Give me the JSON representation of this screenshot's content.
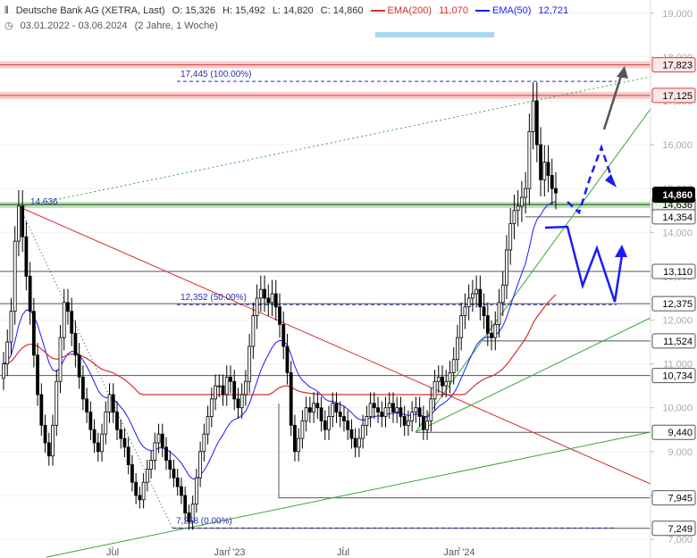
{
  "header": {
    "instrument": "Deutsche Bank AG (XETRA, Last)",
    "open": "O: 15,326",
    "high": "H: 15,492",
    "low": "L: 14,820",
    "close": "C: 14,860",
    "ema200_label": "EMA(200)",
    "ema200_value": "11,070",
    "ema50_label": "EMA(50)",
    "ema50_value": "12,721",
    "date_range": "03.01.2022 - 03.06.2024",
    "period": "(2 Jahre, 1 Woche)"
  },
  "colors": {
    "candle": "#000000",
    "ema200": "#d32f2f",
    "ema50": "#1a1aff",
    "trendline_green": "#3aa63a",
    "trendline_red": "#d32f2f",
    "resistance_zone": "#f4b6b6",
    "support_zone": "#a8e0a0",
    "price_tag": "#000000",
    "projection": "#1a1aff",
    "arrow_gray": "#555555"
  },
  "chart_data": {
    "type": "candlestick",
    "x_tick_labels": [
      "Jul",
      "Jan '23",
      "Jul",
      "Jan '24"
    ],
    "x_ticks": [
      126,
      257,
      384,
      514
    ],
    "y_ticks": [
      7000,
      8000,
      9000,
      10000,
      11000,
      12000,
      13000,
      14000,
      15000,
      16000,
      17000,
      18000,
      19000
    ],
    "y_tick_labels": [
      "7,000",
      "8,000",
      "9,000",
      "10,000",
      "11,000",
      "12,000",
      "13,000",
      "14,000",
      "15,000",
      "16,000",
      "17,000",
      "18,000",
      "19,000"
    ],
    "ylim": [
      6900,
      19300
    ],
    "last_price": 14.86,
    "last_price_label": "14,860",
    "level_labels": [
      {
        "value": 17.823,
        "label": "17,823",
        "style": "zone-red"
      },
      {
        "value": 17.125,
        "label": "17,125",
        "style": "zone-red"
      },
      {
        "value": 14.636,
        "label": "14,636",
        "style": "zone-green"
      },
      {
        "value": 14.354,
        "label": "14,354",
        "style": "line"
      },
      {
        "value": 13.11,
        "label": "13,110",
        "style": "line"
      },
      {
        "value": 12.375,
        "label": "12,375",
        "style": "line"
      },
      {
        "value": 11.524,
        "label": "11,524",
        "style": "line"
      },
      {
        "value": 10.734,
        "label": "10,734",
        "style": "line"
      },
      {
        "value": 9.44,
        "label": "9,440",
        "style": "line"
      },
      {
        "value": 7.945,
        "label": "7,945",
        "style": "line"
      },
      {
        "value": 7.249,
        "label": "7,249",
        "style": "line"
      }
    ],
    "fib_labels": [
      {
        "value": 17.445,
        "label": "17,445 (100.00%)"
      },
      {
        "value": 12.352,
        "label": "12,352 (50.00%)"
      },
      {
        "value": 7.258,
        "label": "7,258 (0.00%)"
      }
    ],
    "peak_label": {
      "value": 14.636,
      "label": "14,636"
    },
    "closes": [
      11.0,
      11.5,
      12.2,
      13.8,
      14.6,
      13.9,
      13.0,
      12.2,
      11.2,
      10.3,
      9.6,
      9.2,
      8.9,
      9.6,
      10.6,
      11.6,
      12.4,
      12.2,
      11.7,
      11.2,
      10.7,
      10.2,
      9.9,
      9.5,
      9.2,
      9.0,
      9.4,
      9.9,
      10.3,
      9.9,
      9.5,
      9.3,
      9.1,
      8.7,
      8.3,
      8.0,
      7.9,
      8.3,
      8.6,
      8.8,
      9.2,
      9.4,
      9.1,
      8.8,
      8.6,
      8.4,
      8.2,
      8.0,
      7.6,
      7.4,
      7.8,
      8.4,
      9.0,
      9.4,
      9.8,
      10.2,
      10.5,
      10.5,
      10.3,
      10.7,
      10.6,
      10.2,
      10.0,
      10.3,
      10.6,
      11.4,
      12.1,
      12.5,
      12.7,
      12.5,
      12.4,
      12.6,
      12.3,
      11.9,
      11.4,
      10.8,
      9.6,
      9.0,
      9.3,
      9.7,
      10.0,
      9.9,
      10.1,
      10.0,
      9.7,
      9.5,
      9.8,
      10.1,
      9.9,
      9.8,
      9.7,
      9.5,
      9.3,
      9.1,
      9.3,
      9.6,
      9.8,
      10.1,
      10.0,
      9.9,
      9.8,
      10.0,
      10.1,
      9.9,
      10.0,
      9.8,
      9.6,
      9.7,
      9.9,
      10.0,
      9.8,
      9.5,
      9.7,
      10.2,
      10.6,
      10.7,
      10.5,
      10.6,
      10.8,
      11.1,
      11.6,
      12.1,
      12.3,
      12.5,
      12.6,
      12.7,
      12.3,
      12.1,
      11.7,
      11.6,
      11.9,
      12.4,
      12.8,
      13.6,
      14.2,
      14.5,
      14.6,
      14.8,
      15.0,
      16.3,
      17.0,
      16.0,
      15.2,
      15.6,
      15.3,
      15.0,
      14.9
    ]
  }
}
